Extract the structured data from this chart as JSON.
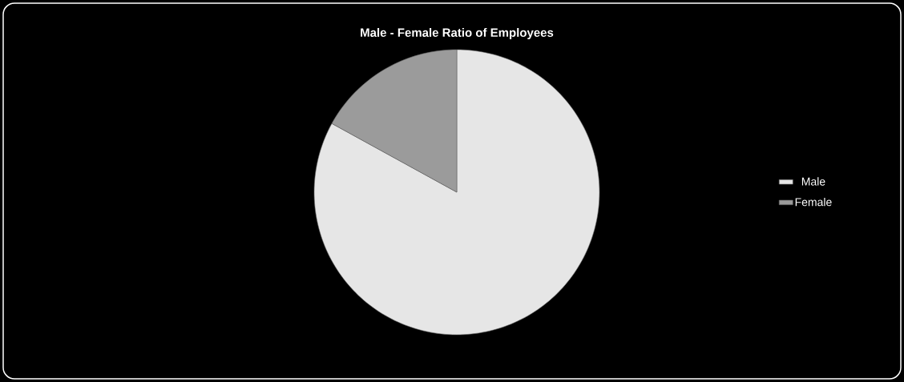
{
  "chart_data": {
    "type": "pie",
    "title": "Male - Female Ratio of Employees",
    "categories": [
      "Male",
      "Female"
    ],
    "values": [
      83,
      17
    ],
    "colors": [
      "#e6e6e6",
      "#9b9b9b"
    ],
    "legend": "right"
  }
}
